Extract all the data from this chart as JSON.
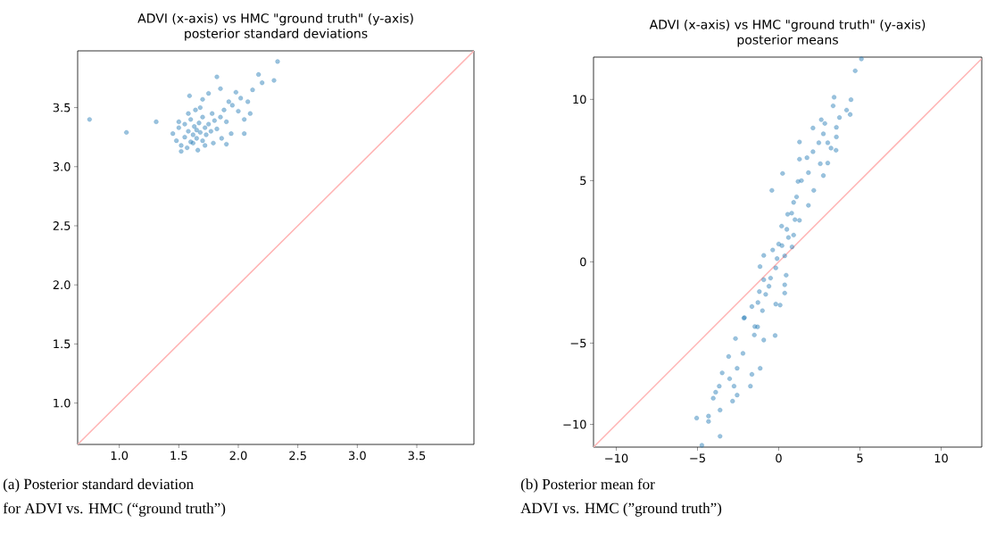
{
  "chart_data": [
    {
      "type": "scatter",
      "title": "ADVI (x-axis) vs HMC \"ground truth\" (y-axis)",
      "subtitle": "posterior standard deviations",
      "xlim": [
        0.65,
        3.98
      ],
      "ylim": [
        0.65,
        3.98
      ],
      "xticks": [
        {
          "value": 1,
          "label": "1.0"
        },
        {
          "value": 1.5,
          "label": "1.5"
        },
        {
          "value": 2,
          "label": "2.0"
        },
        {
          "value": 2.5,
          "label": "2.5"
        },
        {
          "value": 3,
          "label": "3.0"
        },
        {
          "value": 3.5,
          "label": "3.5"
        }
      ],
      "yticks": [
        {
          "value": 1,
          "label": "1.0"
        },
        {
          "value": 1.5,
          "label": "1.5"
        },
        {
          "value": 2,
          "label": "2.0"
        },
        {
          "value": 2.5,
          "label": "2.5"
        },
        {
          "value": 3,
          "label": "3.0"
        },
        {
          "value": 3.5,
          "label": "3.5"
        }
      ],
      "grid": false,
      "annotations": [
        "(a) Posterior standard deviation",
        "for ADVI vs. HMC (“ground truth”)"
      ],
      "series": [
        {
          "color": "#1f77b4",
          "x": [
            0.75,
            1.06,
            1.31,
            2.33,
            2.3,
            2.17,
            2.2,
            1.82,
            1.59,
            2.05,
            1.9,
            1.52,
            1.45,
            1.48,
            1.5,
            1.52,
            1.55,
            1.55,
            1.58,
            1.6,
            1.6,
            1.62,
            1.63,
            1.65,
            1.65,
            1.67,
            1.68,
            1.7,
            1.7,
            1.72,
            1.73,
            1.75,
            1.77,
            1.78,
            1.8,
            1.82,
            1.85,
            1.88,
            1.9,
            1.95,
            2.0,
            2.02,
            2.08,
            2.12,
            1.7,
            1.75,
            1.85,
            1.92,
            1.98,
            2.1,
            1.5,
            1.57,
            1.62,
            1.66,
            1.72,
            1.79,
            1.86,
            1.94,
            2.05,
            1.58,
            1.64,
            1.68
          ],
          "values": [
            3.4,
            3.29,
            3.38,
            3.89,
            3.73,
            3.78,
            3.71,
            3.76,
            3.6,
            3.28,
            3.19,
            3.13,
            3.28,
            3.22,
            3.33,
            3.18,
            3.25,
            3.36,
            3.3,
            3.21,
            3.4,
            3.27,
            3.34,
            3.24,
            3.31,
            3.37,
            3.29,
            3.22,
            3.42,
            3.33,
            3.27,
            3.36,
            3.3,
            3.45,
            3.39,
            3.32,
            3.42,
            3.48,
            3.38,
            3.52,
            3.47,
            3.58,
            3.55,
            3.65,
            3.57,
            3.62,
            3.66,
            3.55,
            3.63,
            3.45,
            3.38,
            3.16,
            3.2,
            3.14,
            3.18,
            3.2,
            3.24,
            3.28,
            3.4,
            3.45,
            3.48,
            3.5
          ]
        },
        {
          "type": "line",
          "color": "#ffb3b3",
          "x": [
            0.65,
            3.98
          ],
          "values": [
            0.65,
            3.98
          ]
        }
      ]
    },
    {
      "type": "scatter",
      "title": "ADVI (x-axis) vs HMC \"ground truth\" (y-axis)",
      "subtitle": "posterior means",
      "xlim": [
        -11.4,
        12.5
      ],
      "ylim": [
        -11.4,
        12.6
      ],
      "xticks": [
        {
          "value": -10,
          "label": "−10"
        },
        {
          "value": -5,
          "label": "−5"
        },
        0,
        5,
        10
      ],
      "yticks": [
        {
          "value": -10,
          "label": "−10"
        },
        {
          "value": -5,
          "label": "−5"
        },
        0,
        5,
        10
      ],
      "grid": false,
      "annotations": [
        "(b) Posterior mean for",
        "ADVI vs. HMC (”ground truth”)"
      ],
      "series": [
        {
          "color": "#1f77b4",
          "x": [
            5.09,
            4.71,
            3.41,
            4.45,
            3.35,
            4.18,
            4.4,
            3.74,
            2.62,
            2.84,
            2.11,
            3.55,
            2.75,
            3.55,
            1.28,
            2.47,
            3.02,
            3.22,
            3.53,
            2.11,
            1.28,
            1.74,
            3.02,
            2.56,
            0.24,
            2.75,
            -0.42,
            1.83,
            2.16,
            1.19,
            0.92,
            1.83,
            0.55,
            1.28,
            0.18,
            0.92,
            0.0,
            0.82,
            -0.37,
            -0.92,
            0.37,
            -1.15,
            -0.18,
            0.46,
            -0.92,
            -1.19,
            0.37,
            -1.65,
            0.09,
            -2.14,
            0.37,
            -0.18,
            -1.28,
            -2.11,
            -1.47,
            -0.22,
            -2.66,
            -0.92,
            -2.2,
            -3.08,
            -1.14,
            -2.56,
            -1.65,
            -3.48,
            -3.02,
            -3.66,
            -2.75,
            -1.74,
            -3.88,
            -2.56,
            -4.03,
            -2.84,
            -3.61,
            -5.05,
            -4.32,
            -4.32,
            -3.61,
            -4.73,
            0.5,
            0.8,
            1.1,
            1.4,
            0.2,
            -0.1,
            -0.5,
            -0.8,
            -1.0,
            -1.3,
            0.6,
            1.0,
            -0.6,
            -1.5
          ],
          "values": [
            12.49,
            11.76,
            10.13,
            9.98,
            9.6,
            9.34,
            9.07,
            8.88,
            8.75,
            8.52,
            8.24,
            8.28,
            7.88,
            7.69,
            7.38,
            7.33,
            7.33,
            7.0,
            6.87,
            6.78,
            6.32,
            6.41,
            6.08,
            6.04,
            5.44,
            5.31,
            4.4,
            5.49,
            4.4,
            4.95,
            3.66,
            3.48,
            2.93,
            2.56,
            2.2,
            1.65,
            1.1,
            0.92,
            0.73,
            0.4,
            0.37,
            -0.29,
            -0.37,
            -0.82,
            -1.1,
            -1.83,
            -1.92,
            -2.75,
            -2.66,
            -3.46,
            -1.41,
            -2.6,
            -2.5,
            -3.43,
            -3.98,
            -4.53,
            -4.72,
            -4.81,
            -5.63,
            -5.82,
            -6.55,
            -6.55,
            -6.92,
            -6.83,
            -7.19,
            -7.65,
            -7.65,
            -7.65,
            -8.02,
            -8.2,
            -8.39,
            -8.57,
            -9.12,
            -9.61,
            -9.49,
            -9.82,
            -10.73,
            -11.29,
            2.0,
            3.0,
            4.0,
            5.0,
            1.0,
            0.2,
            -1.0,
            -2.0,
            -3.0,
            -4.0,
            1.5,
            2.6,
            -1.5,
            -4.5
          ]
        },
        {
          "type": "line",
          "color": "#ffb3b3",
          "x": [
            -11.4,
            12.5
          ],
          "values": [
            -11.4,
            12.5
          ]
        }
      ]
    }
  ]
}
